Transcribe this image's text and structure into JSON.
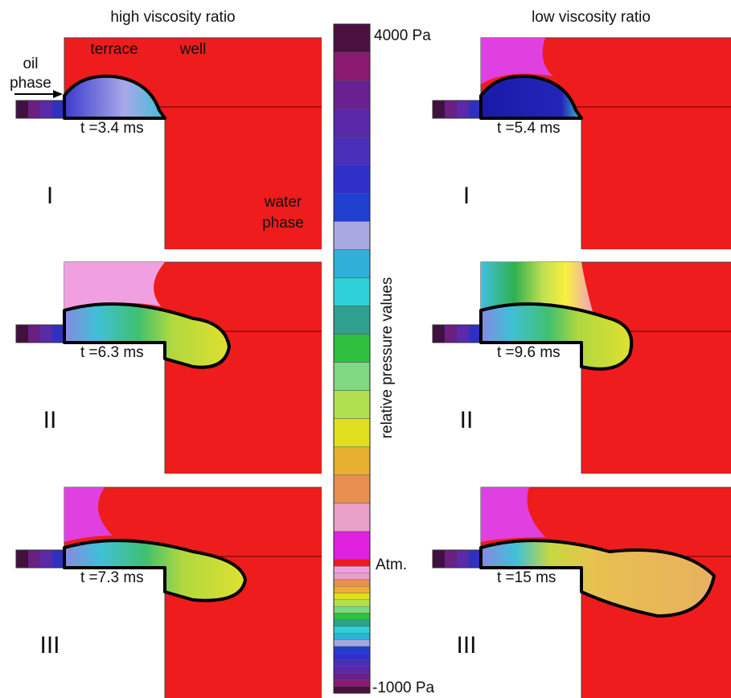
{
  "columns": {
    "left": {
      "title": "high viscosity ratio"
    },
    "right": {
      "title": "low viscosity ratio"
    }
  },
  "annotations": {
    "oil": "oil",
    "oil_phase": "phase",
    "terrace": "terrace",
    "well": "well",
    "water": "water",
    "water_phase": "phase"
  },
  "panels": [
    {
      "stage": "I",
      "left_time": "t =3.4 ms",
      "right_time": "t =5.4 ms"
    },
    {
      "stage": "II",
      "left_time": "t =6.3 ms",
      "right_time": "t =9.6 ms"
    },
    {
      "stage": "III",
      "left_time": "t =7.3 ms",
      "right_time": "t =15 ms"
    }
  ],
  "colorbar": {
    "title": "relative pressure values",
    "top_label": "4000 Pa",
    "atm_label": "Atm.",
    "bottom_label": "-1000 Pa"
  }
}
